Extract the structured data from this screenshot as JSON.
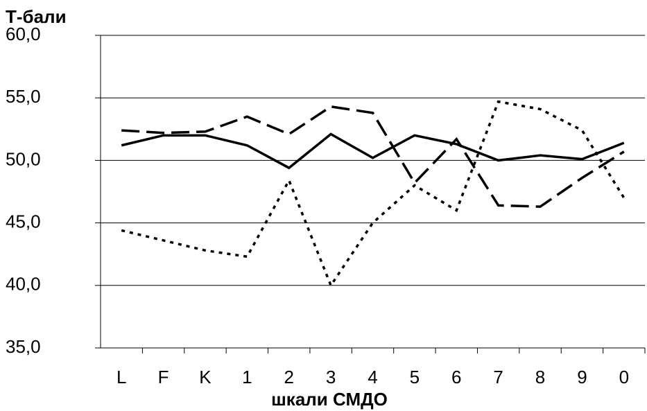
{
  "chart_data": {
    "type": "line",
    "y_label": "Т-бали",
    "x_label": "шкали СМДО",
    "categories": [
      "L",
      "F",
      "K",
      "1",
      "2",
      "3",
      "4",
      "5",
      "6",
      "7",
      "8",
      "9",
      "0"
    ],
    "series": [
      {
        "color": "#000000",
        "dash": "solid",
        "values": [
          51.2,
          52.0,
          52.0,
          51.2,
          49.4,
          52.1,
          50.2,
          52.0,
          51.3,
          50.0,
          50.4,
          50.1,
          51.4
        ]
      },
      {
        "color": "#000000",
        "dash": "dashed",
        "values": [
          52.4,
          52.2,
          52.3,
          53.5,
          52.1,
          54.3,
          53.8,
          48.2,
          51.7,
          46.4,
          46.3,
          48.6,
          50.7
        ]
      },
      {
        "color": "#000000",
        "dash": "dotted",
        "values": [
          44.4,
          43.6,
          42.8,
          42.3,
          48.4,
          40.0,
          45.0,
          48.0,
          46.0,
          54.7,
          54.1,
          52.4,
          47.0
        ]
      }
    ],
    "ylim": [
      35,
      60
    ],
    "yticks": [
      {
        "value": 35,
        "label": "35,0"
      },
      {
        "value": 40,
        "label": "40,0"
      },
      {
        "value": 45,
        "label": "45,0"
      },
      {
        "value": 50,
        "label": "50,0"
      },
      {
        "value": 55,
        "label": "55,0"
      },
      {
        "value": 60,
        "label": "60,0"
      }
    ],
    "grid": true
  }
}
